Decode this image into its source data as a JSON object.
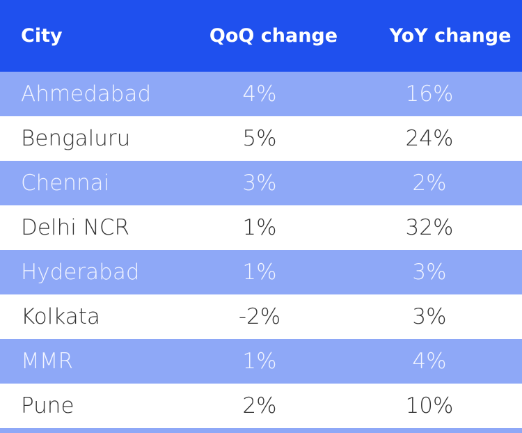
{
  "table": {
    "header": [
      "City",
      "QoQ change",
      "YoY change"
    ],
    "rows": [
      [
        "Ahmedabad",
        "4%",
        "16%"
      ],
      [
        "Bengaluru",
        "5%",
        "24%"
      ],
      [
        "Chennai",
        "3%",
        "2%"
      ],
      [
        "Delhi NCR",
        "1%",
        "32%"
      ],
      [
        "Hyderabad",
        "1%",
        "3%"
      ],
      [
        "Kolkata",
        "-2%",
        "3%"
      ],
      [
        "MMR",
        "1%",
        "4%"
      ],
      [
        "Pune",
        "2%",
        "10%"
      ]
    ]
  }
}
